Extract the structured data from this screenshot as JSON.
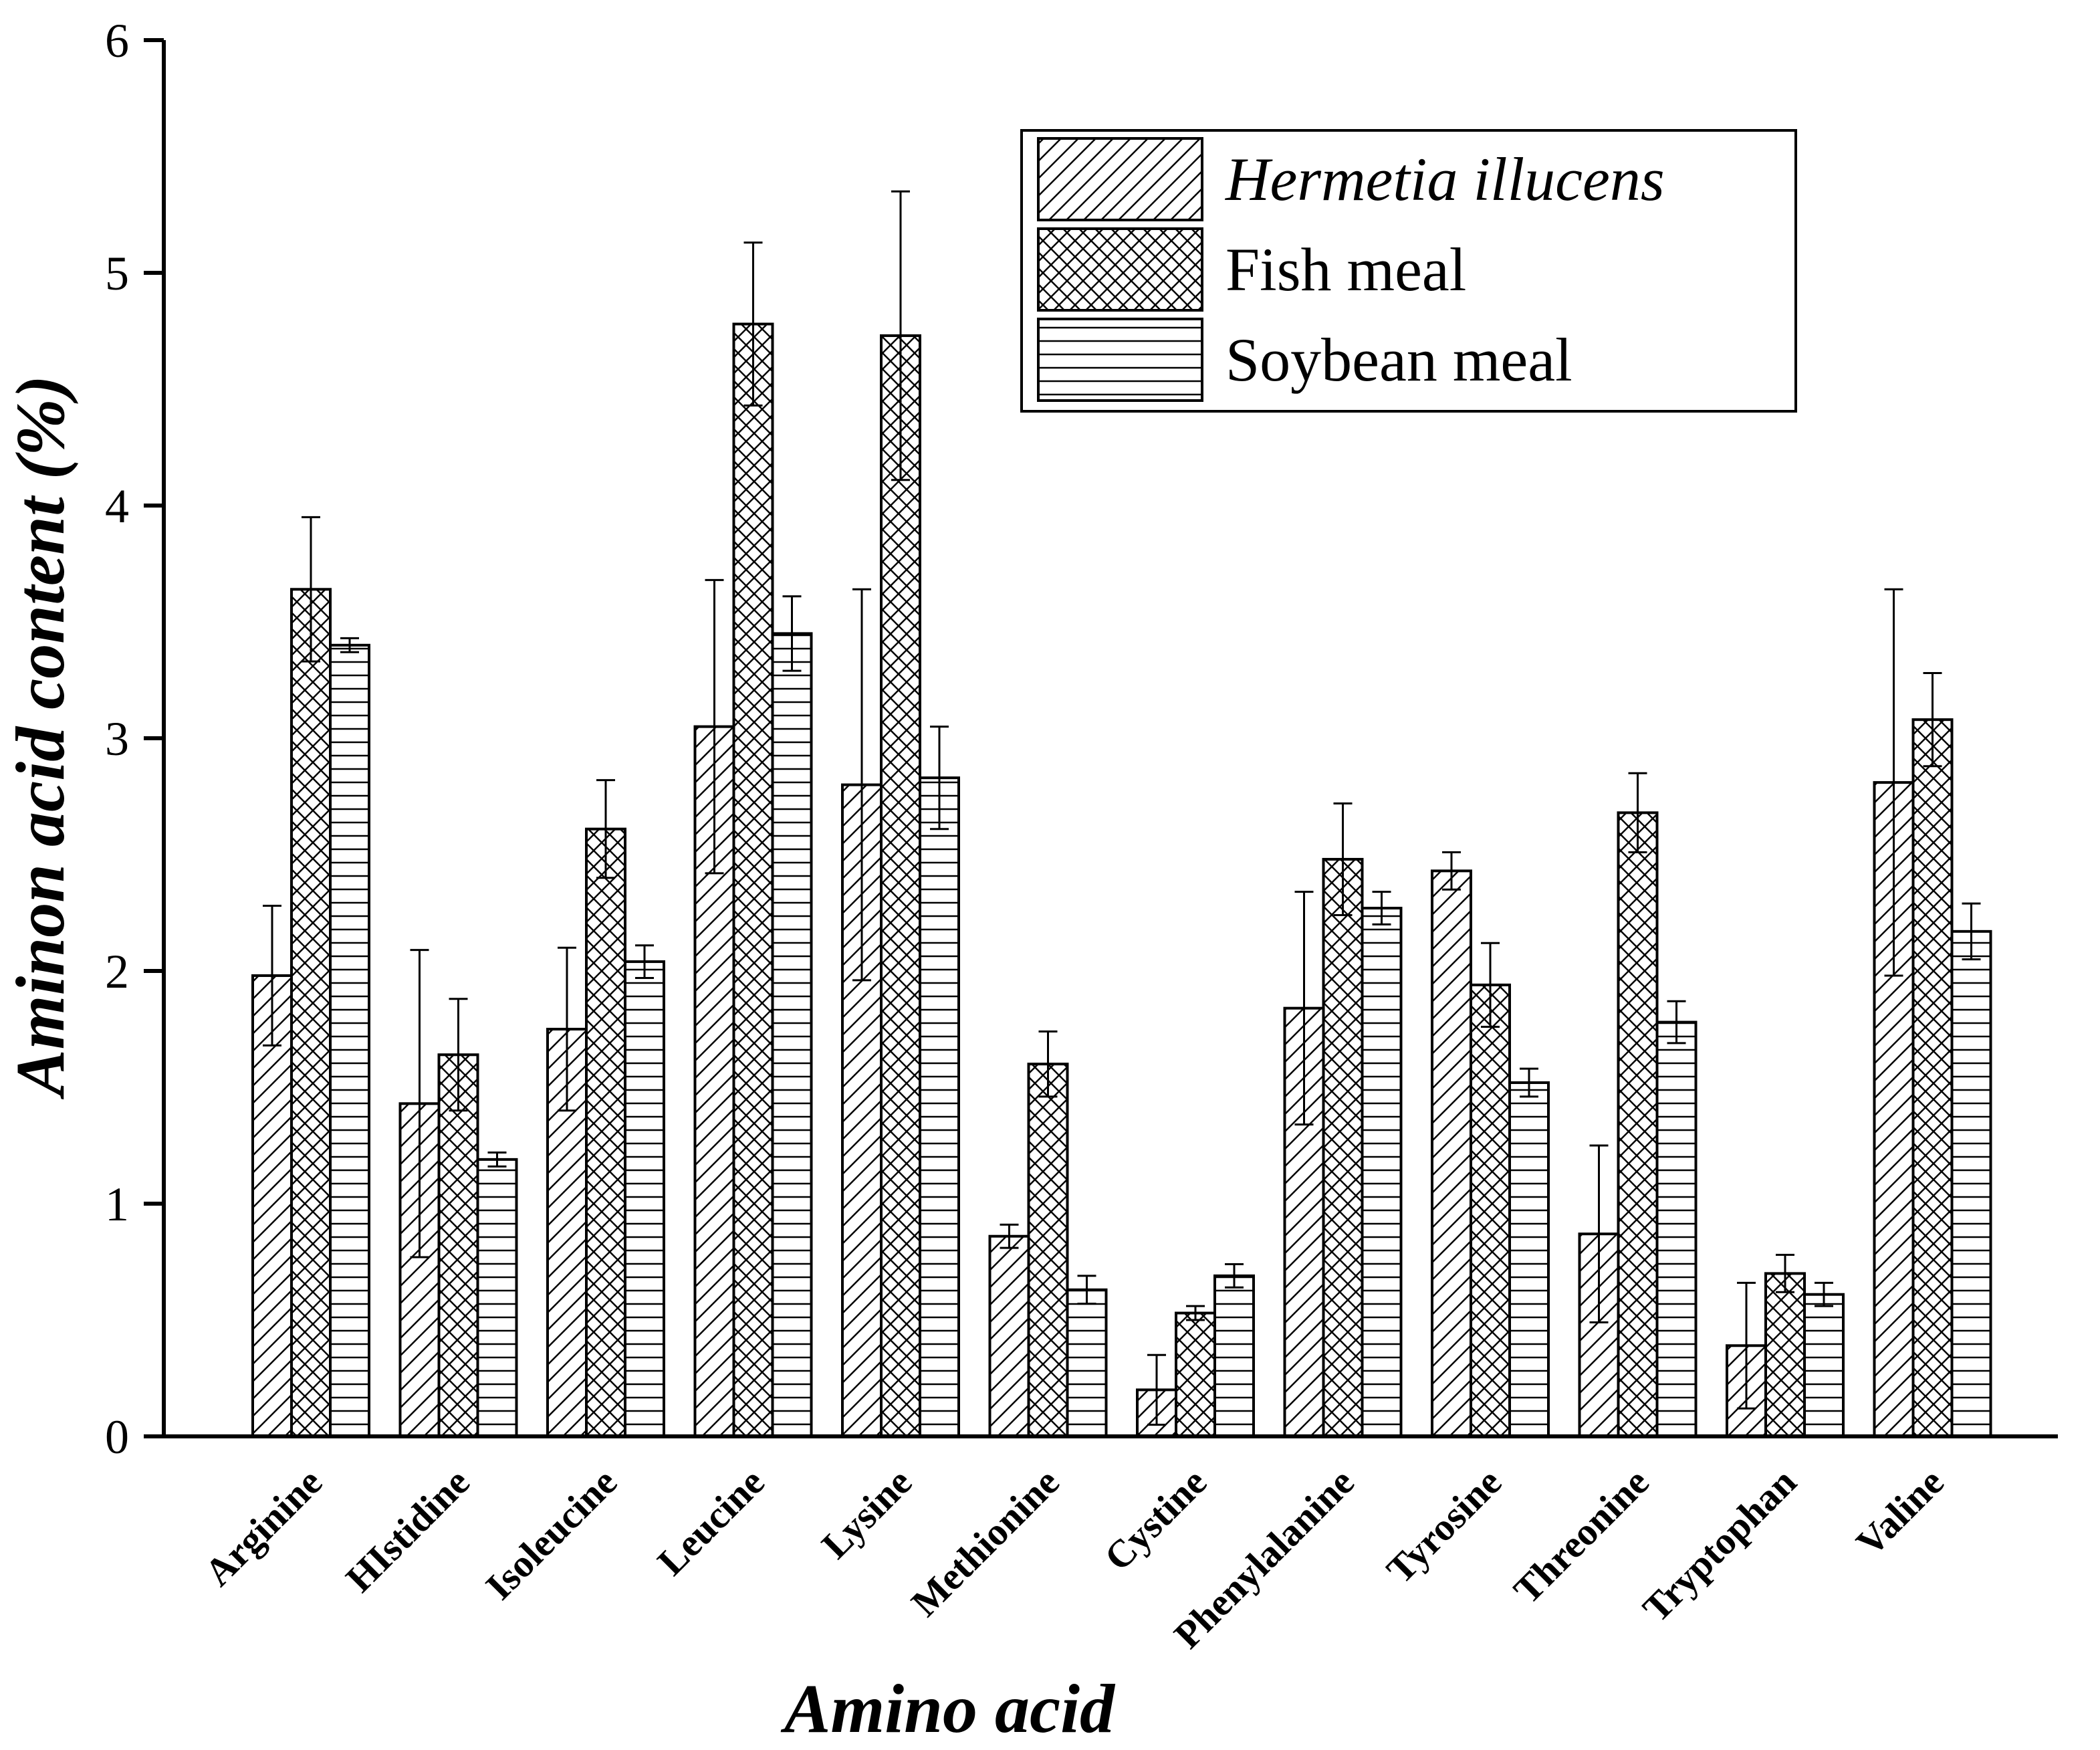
{
  "chart_data": {
    "type": "bar",
    "title": "",
    "xlabel": "Amino acid",
    "ylabel": "Aminon acid content (%)",
    "ylim": [
      0,
      6
    ],
    "yticks": [
      0,
      1,
      2,
      3,
      4,
      5,
      6
    ],
    "grid": false,
    "legend_position": "top-right",
    "categories": [
      "Arginine",
      "HIstidine",
      "Isoleucine",
      "Leucine",
      "Lysine",
      "Methionine",
      "Cystine",
      "Phenylalanine",
      "Tyrosine",
      "Threonine",
      "Tryptophan",
      "Valine"
    ],
    "series": [
      {
        "name": "Hermetia illucens",
        "italic": true,
        "pattern": "diagonal",
        "values": [
          1.98,
          1.43,
          1.75,
          3.05,
          2.8,
          0.86,
          0.2,
          1.84,
          2.43,
          0.87,
          0.39,
          2.81
        ],
        "errors": [
          0.3,
          0.66,
          0.35,
          0.63,
          0.84,
          0.05,
          0.15,
          0.5,
          0.08,
          0.38,
          0.27,
          0.83
        ]
      },
      {
        "name": "Fish meal",
        "italic": false,
        "pattern": "crosshatch",
        "values": [
          3.64,
          1.64,
          2.61,
          4.78,
          4.73,
          1.6,
          0.53,
          2.48,
          1.94,
          2.68,
          0.7,
          3.08
        ],
        "errors": [
          0.31,
          0.24,
          0.21,
          0.35,
          0.62,
          0.14,
          0.03,
          0.24,
          0.18,
          0.17,
          0.08,
          0.2
        ]
      },
      {
        "name": "Soybean meal",
        "italic": false,
        "pattern": "horizontal",
        "values": [
          3.4,
          1.19,
          2.04,
          3.45,
          2.83,
          0.63,
          0.69,
          2.27,
          1.52,
          1.78,
          0.61,
          2.17
        ],
        "errors": [
          0.03,
          0.03,
          0.07,
          0.16,
          0.22,
          0.06,
          0.05,
          0.07,
          0.06,
          0.09,
          0.05,
          0.12
        ]
      }
    ]
  }
}
